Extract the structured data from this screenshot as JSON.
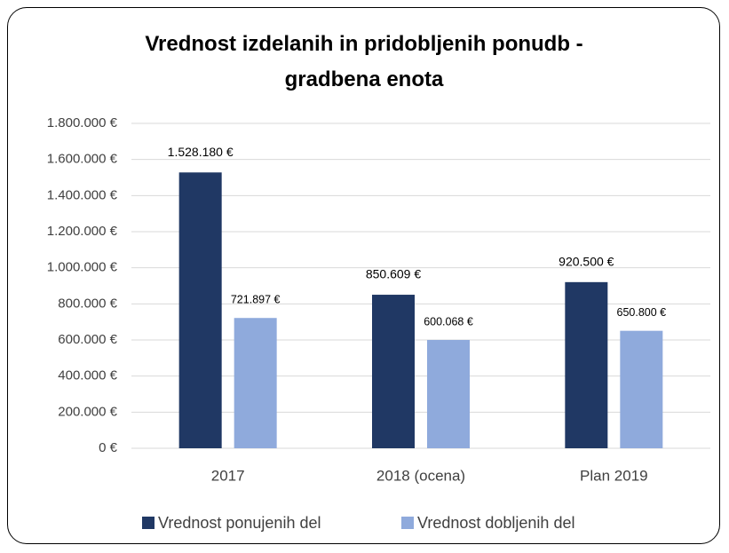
{
  "chart_data": {
    "type": "bar",
    "title": "Vrednost izdelanih in pridobljenih ponudb - gradbena enota",
    "categories": [
      "2017",
      "2018 (ocena)",
      "Plan 2019"
    ],
    "series": [
      {
        "name": "Vrednost ponujenih del",
        "color": "#203864",
        "values": [
          1528180,
          850609,
          920500
        ],
        "value_labels": [
          "1.528.180 €",
          "850.609 €",
          "920.500 €"
        ]
      },
      {
        "name": "Vrednost dobljenih del",
        "color": "#8faadc",
        "values": [
          721897,
          600068,
          650800
        ],
        "value_labels": [
          "721.897 €",
          "600.068 €",
          "650.800 €"
        ]
      }
    ],
    "ylim": [
      0,
      1800000
    ],
    "yticks": [
      {
        "value": 0,
        "label": "0 €"
      },
      {
        "value": 200000,
        "label": "200.000 €"
      },
      {
        "value": 400000,
        "label": "400.000 €"
      },
      {
        "value": 600000,
        "label": "600.000 €"
      },
      {
        "value": 800000,
        "label": "800.000 €"
      },
      {
        "value": 1000000,
        "label": "1.000.000 €"
      },
      {
        "value": 1200000,
        "label": "1.200.000 €"
      },
      {
        "value": 1400000,
        "label": "1.400.000 €"
      },
      {
        "value": 1600000,
        "label": "1.600.000 €"
      },
      {
        "value": 1800000,
        "label": "1.800.000 €"
      }
    ],
    "grid": true,
    "legend": "bottom"
  }
}
